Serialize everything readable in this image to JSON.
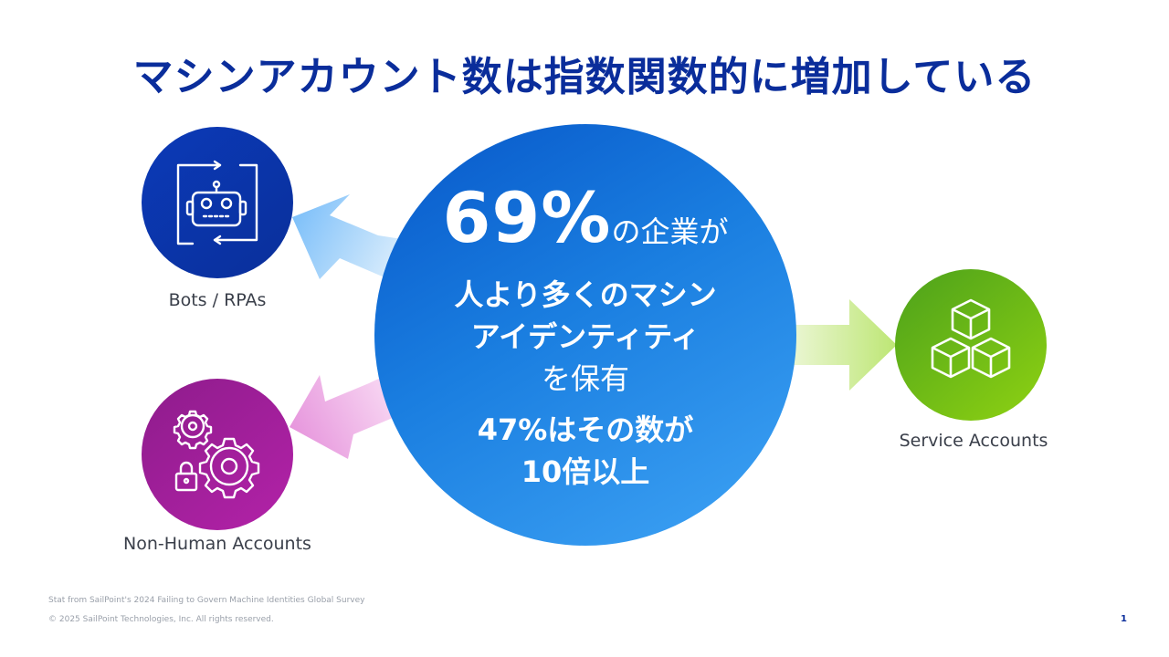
{
  "slide": {
    "title": "マシンアカウント数は指数関数的に増加している",
    "stat": {
      "percent": "69%",
      "suffix": "の企業が",
      "line1": "人より多くのマシン",
      "line2": "アイデンティティ",
      "line3": "を保有",
      "sub1": "47%はその数が",
      "sub2": "10倍以上"
    },
    "categories": {
      "bots": {
        "label": "Bots / RPAs",
        "icon": "robot-icon"
      },
      "nonhuman": {
        "label": "Non-Human Accounts",
        "icon": "gears-lock-icon"
      },
      "service": {
        "label": "Service Accounts",
        "icon": "cubes-icon"
      }
    },
    "footnote": "Stat from SailPoint's 2024 Failing to Govern Machine Identities Global Survey",
    "copyright": "© 2025 SailPoint Technologies, Inc. All rights reserved.",
    "page_number": "1"
  },
  "colors": {
    "title": "#0A2D9B",
    "bots_circle": "#0B3AB8",
    "nonhuman_circle": "#A0219A",
    "service_circle": "#72BE16",
    "center_circle": "#1A7EE0"
  }
}
